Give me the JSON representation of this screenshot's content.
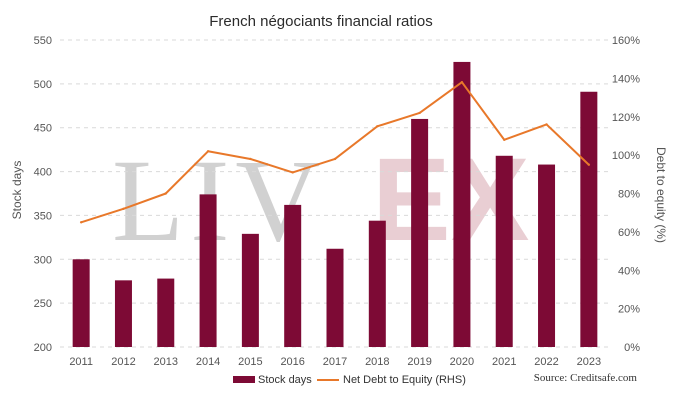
{
  "chart_data": {
    "type": "bar+line",
    "title": "French négociants financial ratios",
    "categories": [
      "2011",
      "2012",
      "2013",
      "2014",
      "2015",
      "2016",
      "2017",
      "2018",
      "2019",
      "2020",
      "2021",
      "2022",
      "2023"
    ],
    "series": [
      {
        "name": "Stock days",
        "type": "bar",
        "axis": "left",
        "color": "#7d0a35",
        "values": [
          300,
          276,
          278,
          374,
          329,
          362,
          312,
          344,
          460,
          525,
          418,
          408,
          491
        ]
      },
      {
        "name": "Net Debt to Equity (RHS)",
        "type": "line",
        "axis": "right",
        "color": "#e8782a",
        "values": [
          65,
          72,
          80,
          102,
          98,
          91,
          98,
          115,
          122,
          138,
          108,
          116,
          95
        ]
      }
    ],
    "ylabel": "Stock days",
    "ylim": [
      200,
      550
    ],
    "yticks": [
      "200",
      "250",
      "300",
      "350",
      "400",
      "450",
      "500",
      "550"
    ],
    "y2label": "Debt to equity (%)",
    "y2lim": [
      0,
      160
    ],
    "y2ticks": [
      "0%",
      "20%",
      "40%",
      "60%",
      "80%",
      "100%",
      "120%",
      "140%",
      "160%"
    ],
    "grid": "horizontal dashed",
    "legend": "bottom",
    "source": "Source: Creditsafe.com",
    "watermark": {
      "left": "LIV",
      "right": "EX"
    }
  }
}
